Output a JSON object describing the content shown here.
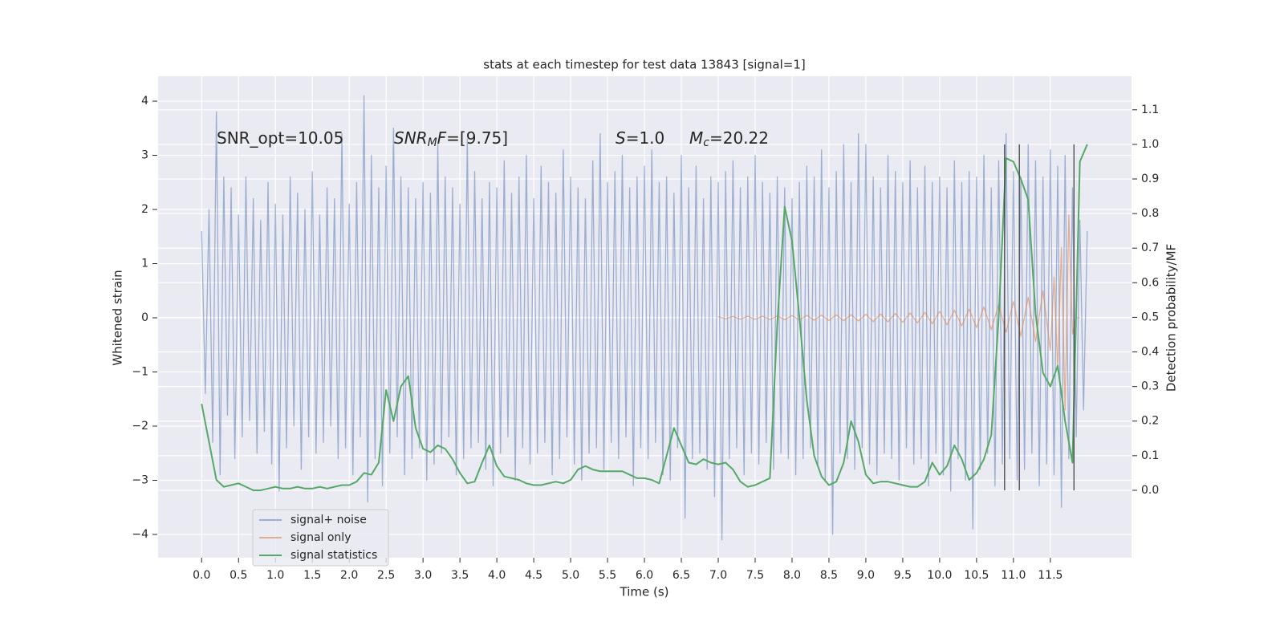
{
  "chart_data": {
    "type": "line",
    "title": "stats at each timestep for test data 13843 [signal=1]",
    "xlabel": "Time (s)",
    "ylabel": "Whitened strain",
    "y2label": "Detection probability/MF",
    "xlim": [
      -0.59,
      12.6
    ],
    "ylim": [
      -4.43,
      4.46
    ],
    "y2lim": [
      -0.195,
      1.197
    ],
    "xticks": [
      {
        "value": 0,
        "label": "0.0"
      },
      0.5,
      {
        "value": 1,
        "label": "1.0"
      },
      1.5,
      {
        "value": 2,
        "label": "2.0"
      },
      2.5,
      {
        "value": 3,
        "label": "3.0"
      },
      3.5,
      {
        "value": 4,
        "label": "4.0"
      },
      4.5,
      {
        "value": 5,
        "label": "5.0"
      },
      5.5,
      {
        "value": 6,
        "label": "6.0"
      },
      6.5,
      {
        "value": 7,
        "label": "7.0"
      },
      7.5,
      {
        "value": 8,
        "label": "8.0"
      },
      8.5,
      {
        "value": 9,
        "label": "9.0"
      },
      9.5,
      {
        "value": 10,
        "label": "10.0"
      },
      10.5,
      {
        "value": 11,
        "label": "11.0"
      },
      11.5
    ],
    "yticks": [
      {
        "value": -4,
        "label": "−4"
      },
      {
        "value": -3,
        "label": "−3"
      },
      {
        "value": -2,
        "label": "−2"
      },
      {
        "value": -1,
        "label": "−1"
      },
      0,
      1,
      2,
      3,
      4
    ],
    "y2ticks": [
      {
        "value": 0,
        "label": "0.0"
      },
      0.1,
      0.2,
      0.3,
      0.4,
      0.5,
      0.6,
      0.7,
      0.8,
      0.9,
      {
        "value": 1,
        "label": "1.0"
      },
      1.1
    ],
    "grid": true,
    "background": "#eaeaf2",
    "legend": "lower left",
    "series": [
      {
        "name": "signal+ noise",
        "color": "#4c72b0",
        "alpha": 0.5,
        "axis": "y",
        "x": [
          0,
          0.05,
          0.1,
          0.15,
          0.2,
          0.25,
          0.3,
          0.35,
          0.4,
          0.45,
          0.5,
          0.55,
          0.6,
          0.65,
          0.7,
          0.75,
          0.8,
          0.85,
          0.9,
          0.95,
          1,
          1.05,
          1.1,
          1.15,
          1.2,
          1.25,
          1.3,
          1.35,
          1.4,
          1.45,
          1.5,
          1.55,
          1.6,
          1.65,
          1.7,
          1.75,
          1.8,
          1.85,
          1.9,
          1.95,
          2,
          2.05,
          2.1,
          2.15,
          2.2,
          2.25,
          2.3,
          2.35,
          2.4,
          2.45,
          2.5,
          2.55,
          2.6,
          2.65,
          2.7,
          2.75,
          2.8,
          2.85,
          2.9,
          2.95,
          3,
          3.05,
          3.1,
          3.15,
          3.2,
          3.25,
          3.3,
          3.35,
          3.4,
          3.45,
          3.5,
          3.55,
          3.6,
          3.65,
          3.7,
          3.75,
          3.8,
          3.85,
          3.9,
          3.95,
          4,
          4.05,
          4.1,
          4.15,
          4.2,
          4.25,
          4.3,
          4.35,
          4.4,
          4.45,
          4.5,
          4.55,
          4.6,
          4.65,
          4.7,
          4.75,
          4.8,
          4.85,
          4.9,
          4.95,
          5,
          5.05,
          5.1,
          5.15,
          5.2,
          5.25,
          5.3,
          5.35,
          5.4,
          5.45,
          5.5,
          5.55,
          5.6,
          5.65,
          5.7,
          5.75,
          5.8,
          5.85,
          5.9,
          5.95,
          6,
          6.05,
          6.1,
          6.15,
          6.2,
          6.25,
          6.3,
          6.35,
          6.4,
          6.45,
          6.5,
          6.55,
          6.6,
          6.65,
          6.7,
          6.75,
          6.8,
          6.85,
          6.9,
          6.95,
          7,
          7.05,
          7.1,
          7.15,
          7.2,
          7.25,
          7.3,
          7.35,
          7.4,
          7.45,
          7.5,
          7.55,
          7.6,
          7.65,
          7.7,
          7.75,
          7.8,
          7.85,
          7.9,
          7.95,
          8,
          8.05,
          8.1,
          8.15,
          8.2,
          8.25,
          8.3,
          8.35,
          8.4,
          8.45,
          8.5,
          8.55,
          8.6,
          8.65,
          8.7,
          8.75,
          8.8,
          8.85,
          8.9,
          8.95,
          9,
          9.05,
          9.1,
          9.15,
          9.2,
          9.25,
          9.3,
          9.35,
          9.4,
          9.45,
          9.5,
          9.55,
          9.6,
          9.65,
          9.7,
          9.75,
          9.8,
          9.85,
          9.9,
          9.95,
          10,
          10.05,
          10.1,
          10.15,
          10.2,
          10.25,
          10.3,
          10.35,
          10.4,
          10.45,
          10.5,
          10.55,
          10.6,
          10.65,
          10.7,
          10.75,
          10.8,
          10.85,
          10.9,
          10.95,
          11,
          11.05,
          11.1,
          11.15,
          11.2,
          11.25,
          11.3,
          11.35,
          11.4,
          11.45,
          11.5,
          11.55,
          11.6,
          11.65,
          11.7,
          11.75,
          11.8,
          11.85,
          11.9,
          11.95,
          12
        ],
        "values": [
          1.6,
          -1.4,
          2.0,
          -2.3,
          3.8,
          -2.9,
          2.6,
          -1.8,
          2.4,
          -2.6,
          1.9,
          -2.2,
          2.6,
          -1.9,
          2.2,
          -2.5,
          1.8,
          -2.1,
          2.5,
          -2.7,
          2.1,
          -3.2,
          1.9,
          -2.4,
          2.6,
          -2.0,
          2.3,
          -2.8,
          2.0,
          -2.2,
          2.7,
          -2.5,
          1.9,
          -2.3,
          2.4,
          -2.0,
          2.2,
          -2.6,
          3.4,
          -2.4,
          2.1,
          -2.9,
          2.5,
          -2.2,
          4.1,
          -3.4,
          3.0,
          -2.6,
          2.4,
          -3.1,
          2.8,
          -2.5,
          3.5,
          -2.2,
          2.6,
          -2.9,
          2.4,
          -2.6,
          2.2,
          -2.4,
          2.5,
          -3.0,
          2.3,
          -2.7,
          3.2,
          -2.5,
          2.6,
          -2.2,
          2.4,
          -2.9,
          2.1,
          -2.6,
          3.3,
          -2.4,
          2.7,
          -2.3,
          2.2,
          -2.8,
          2.5,
          -3.1,
          2.4,
          -2.5,
          2.9,
          -2.2,
          2.3,
          -3.0,
          2.6,
          -2.4,
          3.0,
          -2.7,
          2.2,
          -2.5,
          2.8,
          -2.3,
          2.5,
          -2.9,
          2.3,
          -2.6,
          3.1,
          -2.2,
          2.6,
          -2.7,
          2.4,
          -3.0,
          2.2,
          -2.5,
          2.9,
          -2.4,
          3.4,
          -2.8,
          2.5,
          -2.3,
          2.7,
          -2.6,
          3.0,
          -2.2,
          2.4,
          -3.1,
          2.6,
          -2.4,
          2.8,
          -2.6,
          3.1,
          -2.3,
          2.5,
          -2.9,
          2.6,
          -3.0,
          2.3,
          -2.4,
          3.0,
          -3.7,
          2.4,
          -2.6,
          2.8,
          -2.5,
          2.2,
          -2.8,
          2.6,
          -3.3,
          2.5,
          -4.1,
          2.7,
          -2.6,
          2.9,
          -2.4,
          2.4,
          -2.9,
          2.6,
          -2.5,
          3.0,
          -2.7,
          2.5,
          -2.3,
          2.3,
          -2.8,
          2.6,
          -2.5,
          2.4,
          -2.6,
          2.2,
          -2.9,
          2.5,
          -2.6,
          2.8,
          -2.4,
          2.6,
          -2.7,
          3.1,
          -3.0,
          2.4,
          -4.0,
          2.7,
          -2.5,
          3.2,
          -2.6,
          2.5,
          -2.8,
          3.4,
          -2.4,
          3.2,
          -2.7,
          2.6,
          -2.9,
          2.4,
          -2.5,
          3.0,
          -2.6,
          2.7,
          -3.0,
          2.5,
          -2.4,
          2.9,
          -2.7,
          2.4,
          -2.6,
          2.8,
          -3.1,
          2.5,
          -2.5,
          2.6,
          -2.9,
          2.4,
          -3.2,
          2.9,
          -2.6,
          2.5,
          -3.0,
          2.7,
          -3.9,
          2.6,
          -2.8,
          3.0,
          -2.5,
          2.4,
          -3.1,
          2.9,
          -2.7,
          3.4,
          -2.6,
          2.7,
          -3.0,
          2.6,
          -2.8,
          3.2,
          -2.5,
          2.9,
          -3.1,
          2.6,
          -2.7,
          3.1,
          -2.9,
          2.8,
          -3.5,
          3.0,
          -2.6,
          2.4,
          -2.2,
          1.8,
          -1.7,
          1.6
        ]
      },
      {
        "name": "signal only",
        "color": "#dd8452",
        "alpha": 0.6,
        "axis": "y",
        "x": [
          7,
          7.1,
          7.2,
          7.3,
          7.4,
          7.5,
          7.6,
          7.7,
          7.8,
          7.9,
          8,
          8.1,
          8.2,
          8.3,
          8.4,
          8.5,
          8.6,
          8.7,
          8.8,
          8.9,
          9,
          9.1,
          9.2,
          9.3,
          9.4,
          9.5,
          9.6,
          9.7,
          9.8,
          9.9,
          10,
          10.1,
          10.2,
          10.3,
          10.4,
          10.5,
          10.6,
          10.7,
          10.8,
          10.9,
          11,
          11.1,
          11.2,
          11.3,
          11.4,
          11.5,
          11.55,
          11.6,
          11.65,
          11.7,
          11.75,
          11.8,
          11.85,
          11.9
        ],
        "values": [
          0.02,
          -0.02,
          0.025,
          -0.025,
          0.03,
          -0.03,
          0.03,
          -0.03,
          0.035,
          -0.035,
          0.04,
          -0.04,
          0.045,
          -0.045,
          0.05,
          -0.05,
          0.055,
          -0.055,
          0.06,
          -0.06,
          0.065,
          -0.07,
          0.07,
          -0.075,
          0.08,
          -0.085,
          0.09,
          -0.095,
          0.1,
          -0.11,
          0.12,
          -0.13,
          0.14,
          -0.15,
          0.16,
          -0.18,
          0.2,
          -0.22,
          0.24,
          -0.27,
          0.3,
          -0.34,
          0.38,
          -0.44,
          0.5,
          -0.6,
          0.75,
          -0.95,
          1.3,
          -1.7,
          1.9,
          -0.3,
          0,
          0
        ]
      },
      {
        "name": "signal statistics",
        "color": "#55a868",
        "alpha": 1,
        "axis": "y2",
        "x": [
          0,
          0.1,
          0.2,
          0.3,
          0.4,
          0.5,
          0.6,
          0.7,
          0.8,
          0.9,
          1,
          1.1,
          1.2,
          1.3,
          1.4,
          1.5,
          1.6,
          1.7,
          1.8,
          1.9,
          2,
          2.1,
          2.2,
          2.3,
          2.4,
          2.5,
          2.6,
          2.7,
          2.8,
          2.9,
          3,
          3.1,
          3.2,
          3.3,
          3.4,
          3.5,
          3.6,
          3.7,
          3.8,
          3.9,
          4,
          4.1,
          4.2,
          4.3,
          4.4,
          4.5,
          4.6,
          4.7,
          4.8,
          4.9,
          5,
          5.1,
          5.2,
          5.3,
          5.4,
          5.5,
          5.6,
          5.7,
          5.8,
          5.9,
          6,
          6.1,
          6.2,
          6.3,
          6.4,
          6.5,
          6.6,
          6.7,
          6.8,
          6.9,
          7,
          7.1,
          7.2,
          7.3,
          7.4,
          7.5,
          7.6,
          7.7,
          7.8,
          7.9,
          8,
          8.1,
          8.2,
          8.3,
          8.4,
          8.5,
          8.6,
          8.7,
          8.8,
          8.9,
          9,
          9.1,
          9.2,
          9.3,
          9.4,
          9.5,
          9.6,
          9.7,
          9.8,
          9.9,
          10,
          10.1,
          10.2,
          10.3,
          10.4,
          10.5,
          10.6,
          10.7,
          10.8,
          10.9,
          11,
          11.1,
          11.2,
          11.3,
          11.4,
          11.5,
          11.6,
          11.7,
          11.8,
          11.9,
          12
        ],
        "values": [
          0.25,
          0.14,
          0.03,
          0.01,
          0.015,
          0.02,
          0.01,
          0.0,
          0.0,
          0.005,
          0.01,
          0.005,
          0.005,
          0.01,
          0.005,
          0.005,
          0.01,
          0.005,
          0.01,
          0.015,
          0.015,
          0.025,
          0.05,
          0.045,
          0.08,
          0.29,
          0.2,
          0.3,
          0.33,
          0.18,
          0.12,
          0.11,
          0.13,
          0.12,
          0.09,
          0.05,
          0.02,
          0.025,
          0.08,
          0.13,
          0.07,
          0.04,
          0.035,
          0.03,
          0.02,
          0.015,
          0.015,
          0.02,
          0.025,
          0.02,
          0.03,
          0.06,
          0.07,
          0.06,
          0.055,
          0.055,
          0.055,
          0.055,
          0.045,
          0.035,
          0.035,
          0.03,
          0.02,
          0.1,
          0.18,
          0.13,
          0.08,
          0.075,
          0.09,
          0.08,
          0.075,
          0.08,
          0.06,
          0.025,
          0.01,
          0.015,
          0.025,
          0.035,
          0.48,
          0.82,
          0.72,
          0.5,
          0.26,
          0.1,
          0.04,
          0.015,
          0.025,
          0.08,
          0.2,
          0.14,
          0.045,
          0.02,
          0.025,
          0.025,
          0.02,
          0.015,
          0.01,
          0.01,
          0.025,
          0.08,
          0.045,
          0.07,
          0.13,
          0.09,
          0.03,
          0.05,
          0.09,
          0.16,
          0.5,
          0.96,
          0.95,
          0.9,
          0.84,
          0.51,
          0.34,
          0.3,
          0.36,
          0.2,
          0.08,
          0.95,
          1.0
        ]
      }
    ],
    "vlines": {
      "x": [
        10.88,
        11.08,
        11.82
      ],
      "ylim": [
        0,
        1
      ],
      "axis": "y2",
      "color": "#444444"
    },
    "annotations": [
      [
        {
          "text": "SNR_opt=10.05",
          "style": "normal"
        }
      ],
      [
        {
          "text": "SNR",
          "style": "italic"
        },
        {
          "text": "M",
          "style": "sub"
        },
        {
          "text": "F",
          "style": "italic"
        },
        {
          "text": "=[9.75]",
          "style": "normal"
        }
      ],
      [
        {
          "text": "S",
          "style": "italic"
        },
        {
          "text": "=1.0",
          "style": "normal"
        }
      ],
      [
        {
          "text": "M",
          "style": "italic"
        },
        {
          "text": "c",
          "style": "sub"
        },
        {
          "text": "=20.22",
          "style": "normal"
        }
      ]
    ]
  }
}
